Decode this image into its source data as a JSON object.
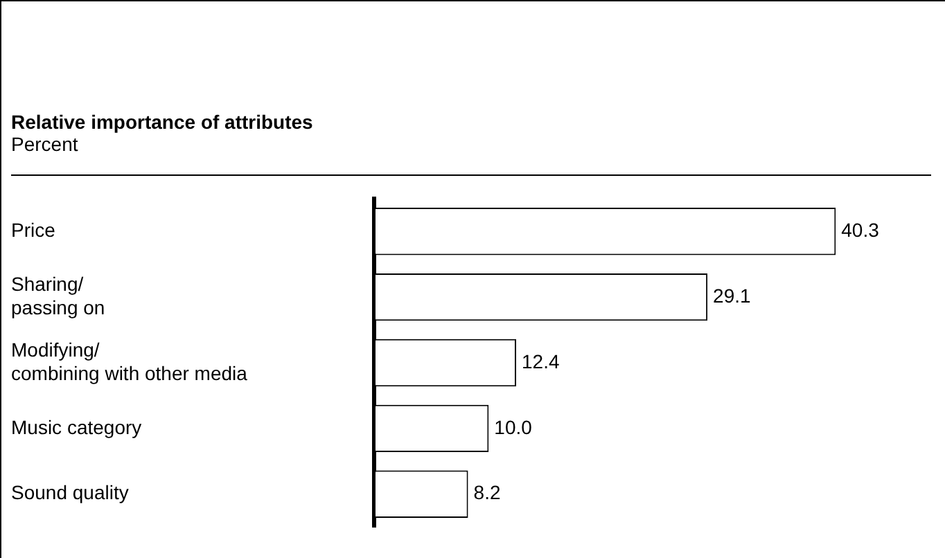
{
  "chart_data": {
    "type": "bar",
    "orientation": "horizontal",
    "title": "Relative importance of attributes",
    "subtitle": "Percent",
    "categories": [
      "Price",
      "Sharing/\npassing on",
      "Modifying/\ncombining with other media",
      "Music category",
      "Sound quality"
    ],
    "values": [
      40.3,
      29.1,
      12.4,
      10.0,
      8.2
    ],
    "value_labels": [
      "40.3",
      "29.1",
      "12.4",
      "10.0",
      "8.2"
    ],
    "color": "#ffffff",
    "legend": false
  }
}
